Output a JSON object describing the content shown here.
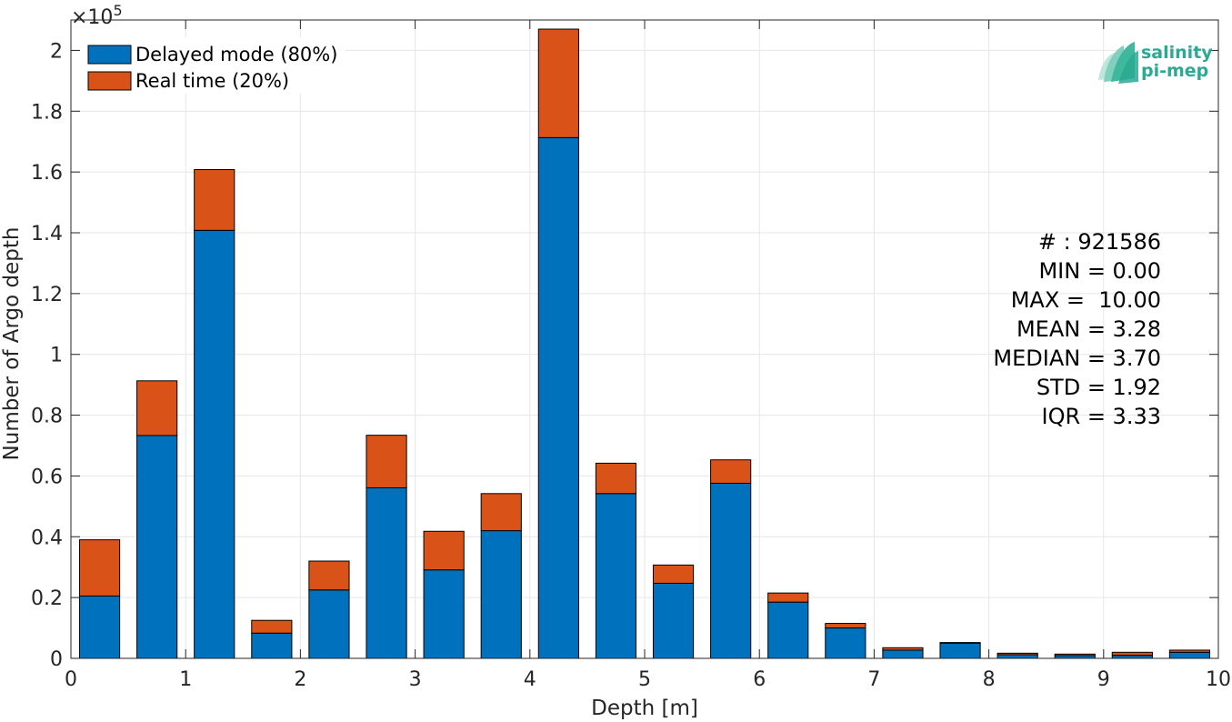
{
  "chart_data": {
    "type": "bar",
    "stacked": true,
    "xlabel": "Depth [m]",
    "ylabel": "Number of Argo depth",
    "y_exponent_label": "×10",
    "y_exponent_power": "5",
    "y_scale": 100000,
    "xlim": [
      0,
      10
    ],
    "ylim": [
      0,
      2.1
    ],
    "x_ticks": [
      "0",
      "1",
      "2",
      "3",
      "4",
      "5",
      "6",
      "7",
      "8",
      "9",
      "10"
    ],
    "y_ticks": [
      "0",
      "0.2",
      "0.4",
      "0.6",
      "0.8",
      "1",
      "1.2",
      "1.4",
      "1.6",
      "1.8",
      "2"
    ],
    "grid": true,
    "legend_placement": "top-left",
    "bin_width": 0.5,
    "x": [
      0.25,
      0.75,
      1.25,
      1.75,
      2.25,
      2.75,
      3.25,
      3.75,
      4.25,
      4.75,
      5.25,
      5.75,
      6.25,
      6.75,
      7.25,
      7.75,
      8.25,
      8.75,
      9.25,
      9.75
    ],
    "series": [
      {
        "name": "Delayed mode (80%)",
        "color": "#0072bd",
        "values": [
          0.205,
          0.733,
          1.408,
          0.083,
          0.225,
          0.561,
          0.291,
          0.42,
          1.713,
          0.542,
          0.247,
          0.576,
          0.185,
          0.1,
          0.027,
          0.05,
          0.012,
          0.009,
          0.01,
          0.02
        ]
      },
      {
        "name": "Real time (20%)",
        "color": "#d95319",
        "values": [
          0.185,
          0.18,
          0.2,
          0.042,
          0.095,
          0.173,
          0.127,
          0.122,
          0.357,
          0.1,
          0.06,
          0.077,
          0.03,
          0.015,
          0.008,
          0.002,
          0.005,
          0.005,
          0.01,
          0.007
        ]
      }
    ],
    "annotations": [
      "# : 921586",
      "MIN = 0.00",
      "MAX =  10.00",
      "MEAN = 3.28",
      "MEDIAN = 3.70",
      "STD = 1.92",
      "IQR = 3.33"
    ]
  },
  "logo": {
    "line1": "salinity",
    "line2": "pi-mep"
  }
}
